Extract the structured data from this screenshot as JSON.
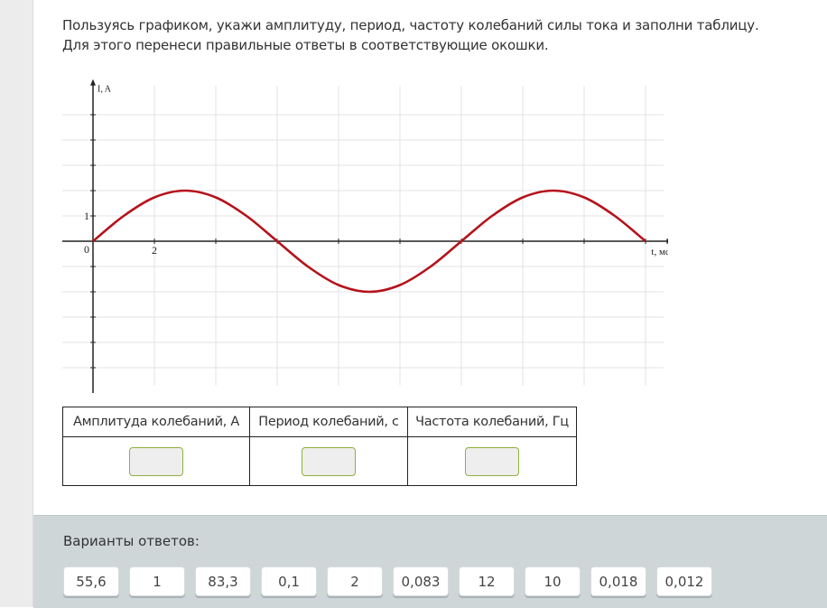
{
  "question": {
    "line1": "Пользуясь графиком, укажи амплитуду, период, частоту колебаний силы тока и заполни таблицу.",
    "line2": "Для этого перенеси правильные ответы в соответствующие окошки."
  },
  "chart_data": {
    "type": "line",
    "ylabel": "I, A",
    "xlabel": "t, мс",
    "origin_label": "0",
    "x_tick_labels": [
      {
        "x": 2,
        "label": "2"
      }
    ],
    "y_tick_labels": [
      {
        "y": 1,
        "label": "1"
      }
    ],
    "xlim": [
      -1,
      18.6
    ],
    "ylim": [
      -5.7,
      6.3
    ],
    "x_grid_step": 2,
    "y_grid_step": 1,
    "grid": true,
    "line_color": "#b5121b",
    "series": [
      {
        "x": [
          0,
          1,
          2,
          3,
          4,
          5,
          6,
          7,
          8,
          9,
          10,
          11,
          12,
          13,
          14,
          15,
          16,
          17,
          18
        ],
        "y": [
          0,
          1,
          1.732,
          2,
          1.732,
          1,
          0,
          -1,
          -1.732,
          -2,
          -1.732,
          -1,
          0,
          1,
          1.732,
          2,
          1.732,
          1,
          0
        ]
      }
    ]
  },
  "table": {
    "headers": [
      "Амплитуда колебаний, А",
      "Период колебаний, с",
      "Частота колебаний, Гц"
    ]
  },
  "answers": {
    "label": "Варианты ответов:",
    "options": [
      "55,6",
      "1",
      "83,3",
      "0,1",
      "2",
      "0,083",
      "12",
      "10",
      "0,018",
      "0,012"
    ]
  },
  "colors": {
    "drop_border": "#8fb13c",
    "panel_bg": "#cfd6d8"
  }
}
